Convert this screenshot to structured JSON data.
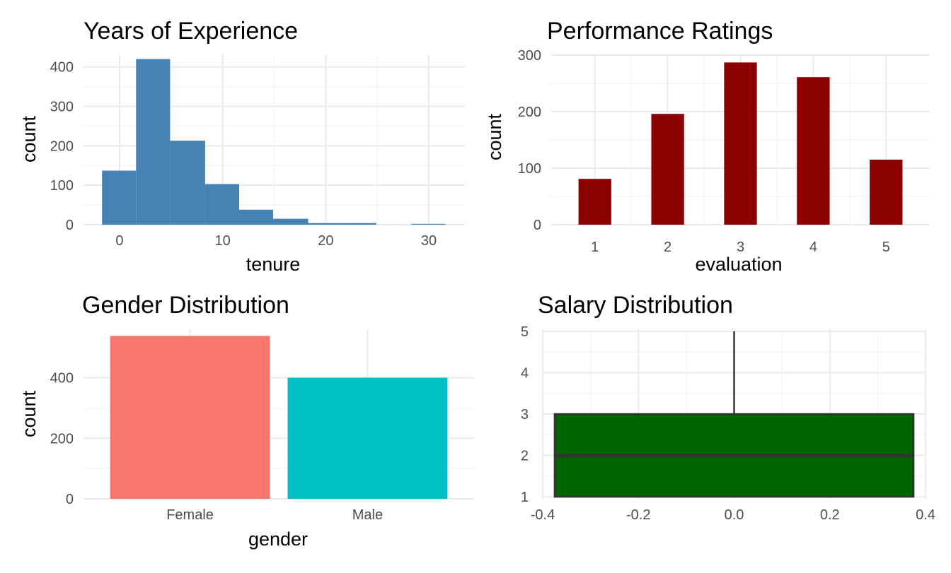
{
  "chart_data": [
    {
      "type": "bar",
      "subtype": "histogram",
      "title": "Years of Experience",
      "xlabel": "tenure",
      "ylabel": "count",
      "xlim": [
        -3.5,
        33.5
      ],
      "ylim": [
        0,
        430
      ],
      "xticks": [
        0,
        10,
        20,
        30
      ],
      "yticks": [
        0,
        100,
        200,
        300,
        400
      ],
      "grid": true,
      "color": "#4682b4",
      "bins": [
        {
          "x0": -1.7,
          "x1": 1.6,
          "count": 137
        },
        {
          "x0": 1.6,
          "x1": 4.9,
          "count": 420
        },
        {
          "x0": 4.9,
          "x1": 8.3,
          "count": 213
        },
        {
          "x0": 8.3,
          "x1": 11.6,
          "count": 103
        },
        {
          "x0": 11.6,
          "x1": 14.9,
          "count": 38
        },
        {
          "x0": 14.9,
          "x1": 18.3,
          "count": 15
        },
        {
          "x0": 18.3,
          "x1": 21.6,
          "count": 4
        },
        {
          "x0": 21.6,
          "x1": 24.9,
          "count": 4
        },
        {
          "x0": 24.9,
          "x1": 28.3,
          "count": 0
        },
        {
          "x0": 28.3,
          "x1": 31.6,
          "count": 2
        }
      ]
    },
    {
      "type": "bar",
      "title": "Performance Ratings",
      "xlabel": "evaluation",
      "ylabel": "count",
      "xlim": [
        0.4,
        5.6
      ],
      "ylim": [
        0,
        300
      ],
      "xticks": [
        1,
        2,
        3,
        4,
        5
      ],
      "yticks": [
        0,
        100,
        200,
        300
      ],
      "grid": true,
      "color": "#8b0000",
      "bar_width": 0.45,
      "points": [
        {
          "x": 1,
          "count": 81
        },
        {
          "x": 2,
          "count": 196
        },
        {
          "x": 3,
          "count": 287
        },
        {
          "x": 4,
          "count": 261
        },
        {
          "x": 5,
          "count": 115
        }
      ]
    },
    {
      "type": "bar",
      "title": "Gender Distribution",
      "xlabel": "gender",
      "ylabel": "count",
      "categories": [
        "Female",
        "Male"
      ],
      "values": [
        538,
        400
      ],
      "colors": [
        "#f8766d",
        "#00bfc4"
      ],
      "ylim": [
        0,
        560
      ],
      "yticks": [
        0,
        200,
        400
      ],
      "grid": true
    },
    {
      "type": "boxplot",
      "title": "Salary Distribution",
      "xlabel": "",
      "ylabel": "",
      "xlim": [
        -0.4,
        0.4
      ],
      "ylim": [
        0.95,
        5.05
      ],
      "xticks": [
        "-0.4",
        "-0.2",
        "0.0",
        "0.2",
        "0.4"
      ],
      "xtick_values": [
        -0.4,
        -0.2,
        0.0,
        0.2,
        0.4
      ],
      "yticks": [
        1,
        2,
        3,
        4,
        5
      ],
      "grid": true,
      "fill": "#006400",
      "stroke": "#333333",
      "box": {
        "x_left": -0.375,
        "x_right": 0.375,
        "min": 1,
        "q1": 1,
        "median": 2,
        "q3": 3,
        "max": 5
      }
    }
  ]
}
